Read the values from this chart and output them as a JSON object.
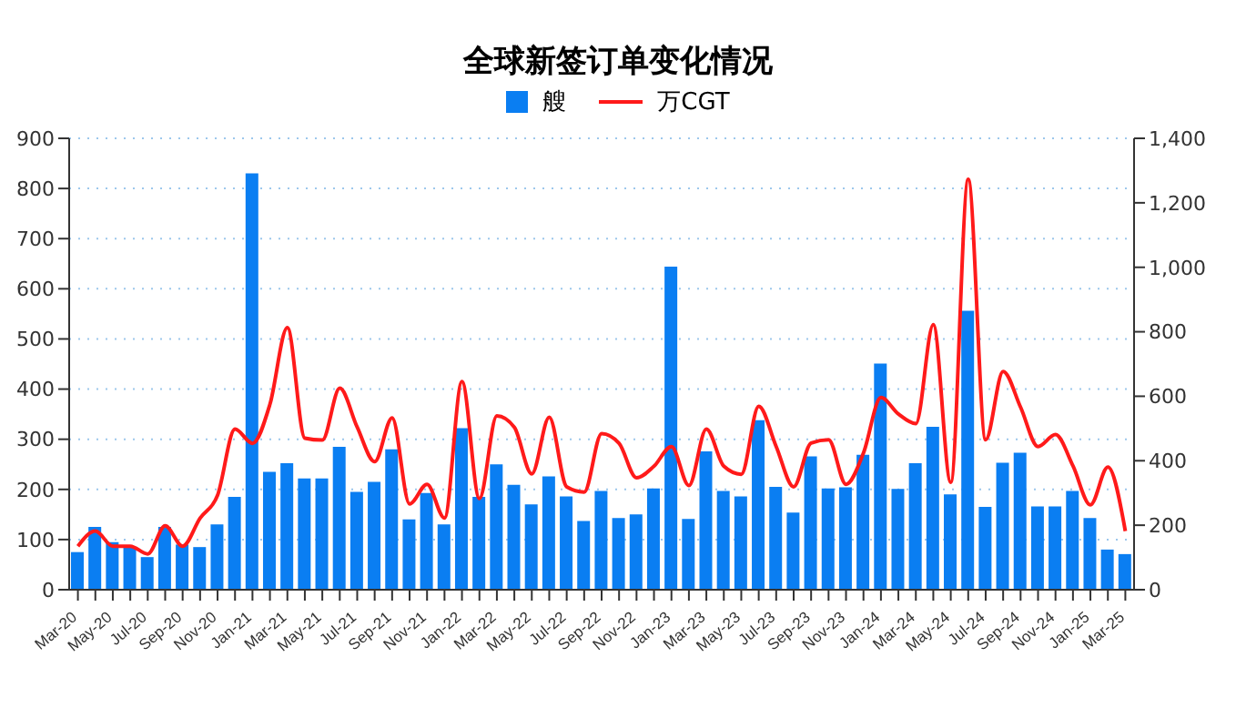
{
  "chart_data": {
    "type": "bar",
    "title": "全球新签订单变化情况",
    "categories": [
      "Mar-20",
      null,
      "May-20",
      null,
      "Jul-20",
      null,
      "Sep-20",
      null,
      "Nov-20",
      null,
      "Jan-21",
      null,
      "Mar-21",
      null,
      "May-21",
      null,
      "Jul-21",
      null,
      "Sep-21",
      null,
      "Nov-21",
      null,
      "Jan-22",
      null,
      "Mar-22",
      null,
      "May-22",
      null,
      "Jul-22",
      null,
      "Sep-22",
      null,
      "Nov-22",
      null,
      "Jan-23",
      null,
      "Mar-23",
      null,
      "May-23",
      null,
      "Jul-23",
      null,
      "Sep-23",
      null,
      "Nov-23",
      null,
      "Jan-24",
      null,
      "Mar-24",
      null,
      "May-24",
      null,
      "Jul-24",
      null,
      "Sep-24",
      null,
      "Nov-24",
      null,
      "Jan-25",
      null,
      "Mar-25"
    ],
    "series": [
      {
        "name": "艘",
        "color": "#0a7ef2",
        "values": [
          75,
          125,
          95,
          85,
          65,
          125,
          90,
          85,
          130,
          185,
          830,
          235,
          252,
          222,
          222,
          285,
          195,
          215,
          280,
          140,
          193,
          130,
          322,
          185,
          250,
          209,
          170,
          226,
          186,
          137,
          197,
          143,
          150,
          202,
          644,
          141,
          276,
          197,
          186,
          338,
          205,
          154,
          266,
          202,
          204,
          269,
          451,
          201,
          252,
          325,
          190,
          556,
          165,
          253,
          273,
          166,
          166,
          197,
          143,
          80,
          71
        ]
      },
      {
        "name": "万CGT",
        "type": "line",
        "axis": "y2",
        "color": "#ff1a1a",
        "values": [
          135,
          182,
          135,
          135,
          111,
          198,
          135,
          222,
          293,
          498,
          454,
          575,
          813,
          470,
          464,
          625,
          504,
          397,
          533,
          266,
          327,
          222,
          646,
          283,
          539,
          504,
          359,
          535,
          319,
          303,
          484,
          454,
          347,
          383,
          444,
          323,
          498,
          383,
          358,
          569,
          444,
          319,
          455,
          465,
          327,
          424,
          596,
          545,
          515,
          822,
          333,
          1273,
          465,
          677,
          566,
          444,
          481,
          384,
          263,
          380,
          182
        ]
      }
    ],
    "ylim": [
      0,
      900
    ],
    "yticks": [
      0,
      100,
      200,
      300,
      400,
      500,
      600,
      700,
      800,
      900
    ],
    "y2lim": [
      0,
      1400
    ],
    "y2ticks": [
      0,
      200,
      400,
      600,
      800,
      {
        "value": 1000,
        "label": "1,000"
      },
      {
        "value": 1200,
        "label": "1,200"
      },
      {
        "value": 1400,
        "label": "1,400"
      }
    ],
    "grid": "y",
    "legend": "top"
  }
}
